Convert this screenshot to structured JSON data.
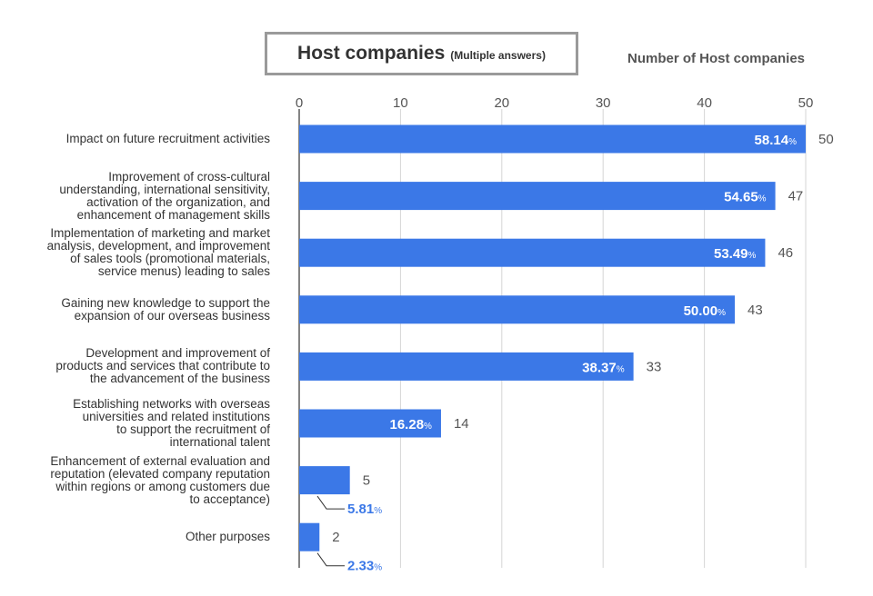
{
  "chart_data": {
    "type": "bar",
    "orientation": "horizontal",
    "title": "Host companies",
    "subtitle": "(Multiple answers)",
    "xlabel": "Number of Host companies",
    "xlim": [
      0,
      50
    ],
    "xticks": [
      "0",
      "10",
      "20",
      "30",
      "40",
      "50"
    ],
    "grid": true,
    "bar_color": "#3b78e7",
    "inside_label_color": "#ffffff",
    "outside_label_color": "#3b78e7",
    "categories": [
      {
        "lines": [
          "Impact on future recruitment activities"
        ],
        "value": 50,
        "value_label": "50",
        "pct": "58.14",
        "pct_unit": "%"
      },
      {
        "lines": [
          "Improvement of cross-cultural",
          "understanding, international sensitivity,",
          "activation of the organization, and",
          "enhancement of management skills"
        ],
        "value": 47,
        "value_label": "47",
        "pct": "54.65",
        "pct_unit": "%"
      },
      {
        "lines": [
          "Implementation of marketing and market",
          "analysis, development, and improvement",
          "of sales tools (promotional materials,",
          "service menus) leading to sales"
        ],
        "value": 46,
        "value_label": "46",
        "pct": "53.49",
        "pct_unit": "%"
      },
      {
        "lines": [
          "Gaining new knowledge to support the",
          "expansion of our overseas business"
        ],
        "value": 43,
        "value_label": "43",
        "pct": "50.00",
        "pct_unit": "%"
      },
      {
        "lines": [
          "Development and improvement of",
          "products and services that contribute to",
          "the advancement of the business"
        ],
        "value": 33,
        "value_label": "33",
        "pct": "38.37",
        "pct_unit": "%"
      },
      {
        "lines": [
          "Establishing networks with overseas",
          "universities and related institutions",
          "to support the recruitment of",
          "international talent"
        ],
        "value": 14,
        "value_label": "14",
        "pct": "16.28",
        "pct_unit": "%"
      },
      {
        "lines": [
          "Enhancement of external evaluation and",
          "reputation (elevated company reputation",
          "within regions or among customers due",
          "to acceptance)"
        ],
        "value": 5,
        "value_label": "5",
        "pct": "5.81",
        "pct_unit": "%"
      },
      {
        "lines": [
          "Other purposes"
        ],
        "value": 2,
        "value_label": "2",
        "pct": "2.33",
        "pct_unit": "%"
      }
    ]
  }
}
